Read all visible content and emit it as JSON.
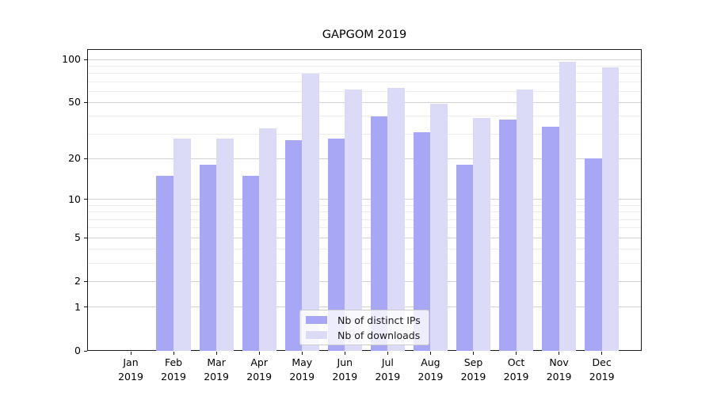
{
  "chart_data": {
    "type": "bar",
    "title": "GAPGOM 2019",
    "categories": [
      "Jan 2019",
      "Feb 2019",
      "Mar 2019",
      "Apr 2019",
      "May 2019",
      "Jun 2019",
      "Jul 2019",
      "Aug 2019",
      "Sep 2019",
      "Oct 2019",
      "Nov 2019",
      "Dec 2019"
    ],
    "series": [
      {
        "name": "Nb of distinct IPs",
        "color": "#a7a7f5",
        "values": [
          0,
          15,
          18,
          15,
          27,
          28,
          40,
          31,
          18,
          38,
          34,
          20
        ]
      },
      {
        "name": "Nb of downloads",
        "color": "#dbdbf8",
        "values": [
          0,
          28,
          28,
          33,
          80,
          62,
          63,
          49,
          39,
          62,
          96,
          88
        ]
      }
    ],
    "xlabel": "",
    "ylabel": "",
    "yscale": "log1p",
    "yticks": [
      0,
      1,
      2,
      5,
      10,
      20,
      50,
      100
    ],
    "y_minor_gridlines": [
      3,
      4,
      6,
      7,
      8,
      9,
      30,
      40,
      60,
      70,
      80,
      90
    ],
    "ylim": [
      0,
      118
    ],
    "grid": "horizontal major+minor",
    "legend_position": "lower center"
  }
}
